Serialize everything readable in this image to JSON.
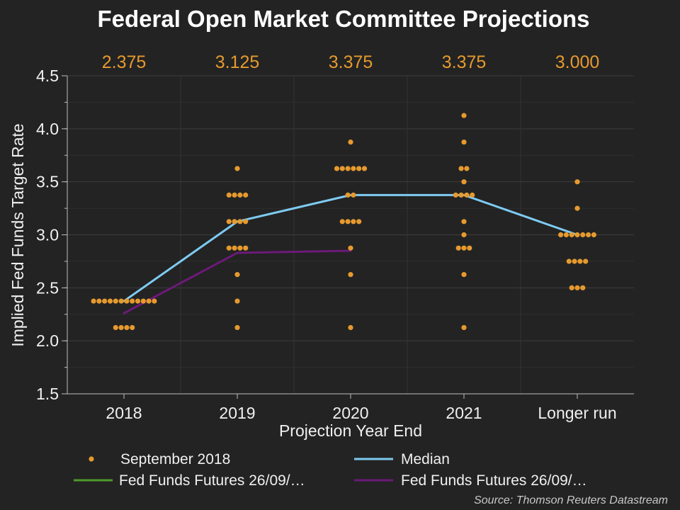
{
  "chart_data": {
    "type": "scatter",
    "title": "Federal Open Market Committee Projections",
    "xlabel": "Projection Year End",
    "ylabel": "Implied Fed Funds Target Rate",
    "categories": [
      "2018",
      "2019",
      "2020",
      "2021",
      "Longer run"
    ],
    "ylim": [
      1.5,
      4.5
    ],
    "yticks": [
      "1.5",
      "2.0",
      "2.5",
      "3.0",
      "3.5",
      "4.0",
      "4.5"
    ],
    "median_labels": [
      "2.375",
      "3.125",
      "3.375",
      "3.375",
      "3.000"
    ],
    "grid": true,
    "legend_position": "bottom",
    "colors": {
      "background": "#232323",
      "dots": "#e69a2e",
      "median": "#7ecbf2",
      "futures_green": "#4e9a2a",
      "futures_purple": "#6b1a78",
      "axis": "#bdbdbd",
      "grid": "#3a3a3a"
    },
    "dot_plot": {
      "name": "September 2018",
      "columns": [
        {
          "category": "2018",
          "rows": [
            {
              "y": 2.375,
              "count": 12
            },
            {
              "y": 2.125,
              "count": 4
            }
          ]
        },
        {
          "category": "2019",
          "rows": [
            {
              "y": 3.625,
              "count": 1
            },
            {
              "y": 3.375,
              "count": 4
            },
            {
              "y": 3.125,
              "count": 4
            },
            {
              "y": 2.875,
              "count": 4
            },
            {
              "y": 2.625,
              "count": 1
            },
            {
              "y": 2.375,
              "count": 1
            },
            {
              "y": 2.125,
              "count": 1
            }
          ]
        },
        {
          "category": "2020",
          "rows": [
            {
              "y": 3.875,
              "count": 1
            },
            {
              "y": 3.625,
              "count": 6
            },
            {
              "y": 3.375,
              "count": 2
            },
            {
              "y": 3.125,
              "count": 4
            },
            {
              "y": 2.875,
              "count": 1
            },
            {
              "y": 2.625,
              "count": 1
            },
            {
              "y": 2.125,
              "count": 1
            }
          ]
        },
        {
          "category": "2021",
          "rows": [
            {
              "y": 4.125,
              "count": 1
            },
            {
              "y": 3.875,
              "count": 1
            },
            {
              "y": 3.625,
              "count": 2
            },
            {
              "y": 3.5,
              "count": 1
            },
            {
              "y": 3.375,
              "count": 4
            },
            {
              "y": 3.125,
              "count": 1
            },
            {
              "y": 3.0,
              "count": 1
            },
            {
              "y": 2.875,
              "count": 3
            },
            {
              "y": 2.625,
              "count": 1
            },
            {
              "y": 2.125,
              "count": 1
            }
          ]
        },
        {
          "category": "Longer run",
          "rows": [
            {
              "y": 3.5,
              "count": 1
            },
            {
              "y": 3.25,
              "count": 1
            },
            {
              "y": 3.0,
              "count": 7
            },
            {
              "y": 2.75,
              "count": 4
            },
            {
              "y": 2.5,
              "count": 3
            }
          ]
        }
      ]
    },
    "series": [
      {
        "name": "Median",
        "type": "line",
        "points": [
          {
            "x": "2018",
            "y": 2.375
          },
          {
            "x": "2019",
            "y": 3.125
          },
          {
            "x": "2020",
            "y": 3.375
          },
          {
            "x": "2021",
            "y": 3.375
          },
          {
            "x": "Longer run",
            "y": 3.0
          }
        ]
      },
      {
        "name": "Fed Funds Futures 26/09/…",
        "type": "line",
        "color": "purple",
        "points": [
          {
            "x": "2018",
            "y": 2.26
          },
          {
            "x": "2019",
            "y": 2.83
          },
          {
            "x": "2020",
            "y": 2.85
          }
        ]
      },
      {
        "name": "Fed Funds Futures 26/09/…",
        "type": "line",
        "color": "green",
        "points": []
      }
    ],
    "legend": [
      {
        "label": "September 2018",
        "marker": "dot"
      },
      {
        "label": "Median",
        "marker": "line-blue"
      },
      {
        "label": "Fed Funds Futures 26/09/…",
        "marker": "line-green"
      },
      {
        "label": "Fed Funds Futures 26/09/…",
        "marker": "line-purple"
      }
    ],
    "source": "Source: Thomson Reuters Datastream"
  }
}
